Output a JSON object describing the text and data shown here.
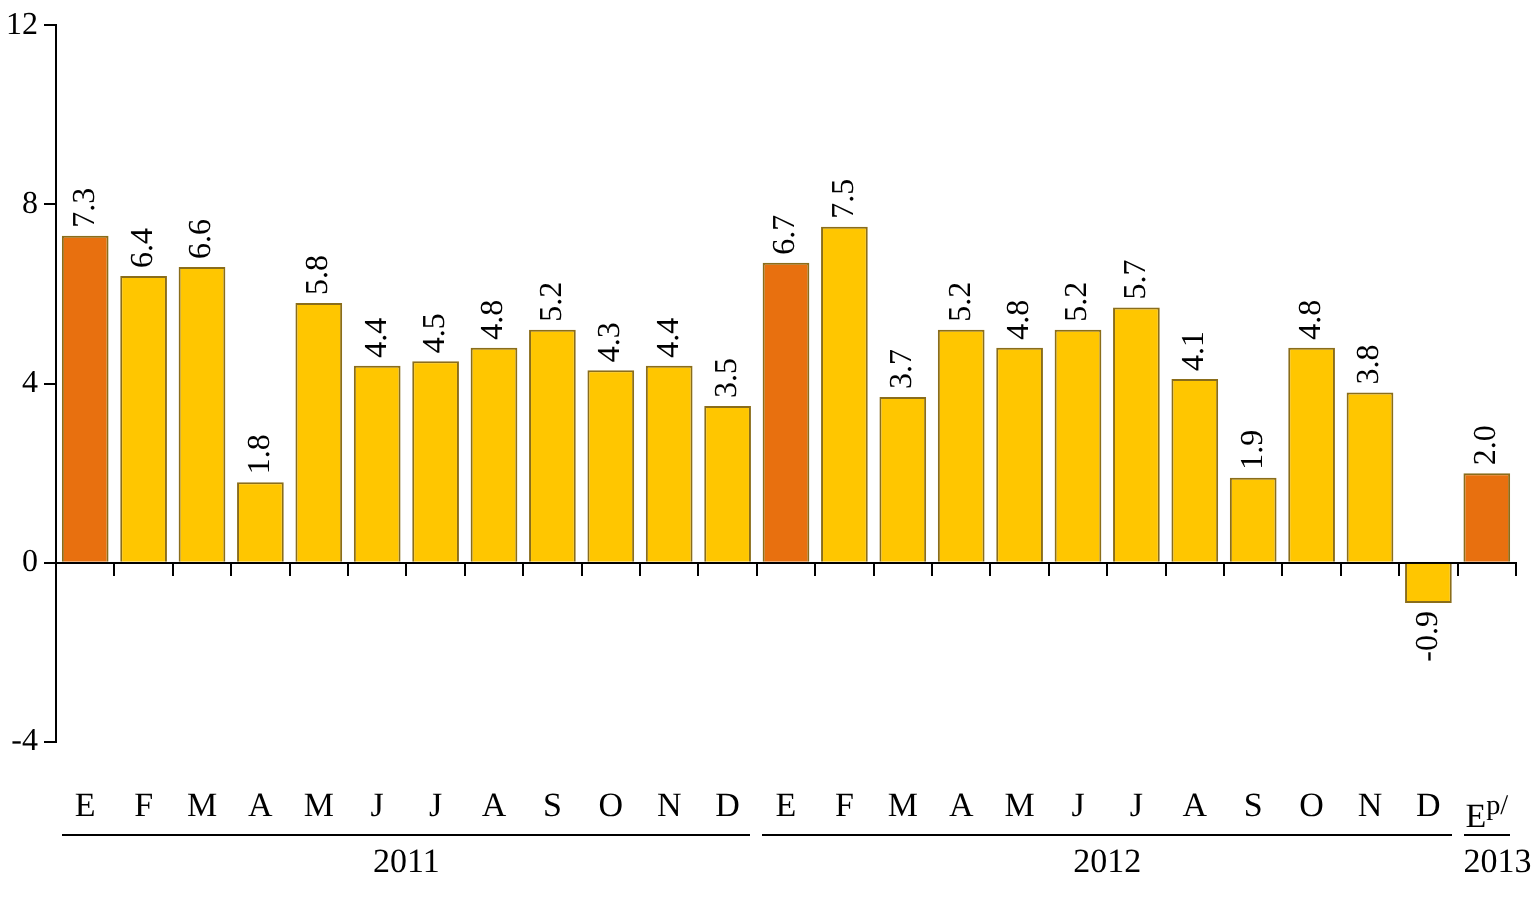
{
  "chart_data": {
    "type": "bar",
    "categories": [
      "E",
      "F",
      "M",
      "A",
      "M",
      "J",
      "J",
      "A",
      "S",
      "O",
      "N",
      "D",
      "E",
      "F",
      "M",
      "A",
      "M",
      "J",
      "J",
      "A",
      "S",
      "O",
      "N",
      "D",
      "E$^{p/}$"
    ],
    "values": [
      7.3,
      6.4,
      6.6,
      1.8,
      5.8,
      4.4,
      4.5,
      4.8,
      5.2,
      4.3,
      4.4,
      3.5,
      6.7,
      7.5,
      3.7,
      5.2,
      4.8,
      5.2,
      5.7,
      4.1,
      1.9,
      4.8,
      3.8,
      -0.9,
      2.0
    ],
    "colors": [
      "#e8700f",
      "#ffc600",
      "#ffc600",
      "#ffc600",
      "#ffc600",
      "#ffc600",
      "#ffc600",
      "#ffc600",
      "#ffc600",
      "#ffc600",
      "#ffc600",
      "#ffc600",
      "#e8700f",
      "#ffc600",
      "#ffc600",
      "#ffc600",
      "#ffc600",
      "#ffc600",
      "#ffc600",
      "#ffc600",
      "#ffc600",
      "#ffc600",
      "#ffc600",
      "#ffc600",
      "#e8700f"
    ],
    "value_labels": [
      "7.3",
      "6.4",
      "6.6",
      "1.8",
      "5.8",
      "4.4",
      "4.5",
      "4.8",
      "5.2",
      "4.3",
      "4.4",
      "3.5",
      "6.7",
      "7.5",
      "3.7",
      "5.2",
      "4.8",
      "5.2",
      "5.7",
      "4.1",
      "1.9",
      "4.8",
      "3.8",
      "-0.9",
      "2.0"
    ],
    "ylim": [
      -4,
      12
    ],
    "yticks": [
      -4,
      0,
      4,
      8,
      12
    ],
    "annotations": [
      "2011",
      "2012",
      "2013"
    ]
  }
}
